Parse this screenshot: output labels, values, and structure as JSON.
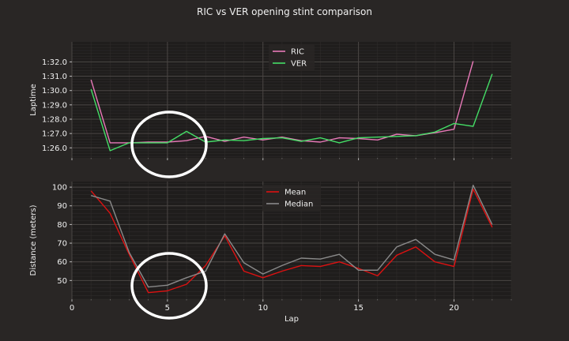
{
  "figure": {
    "title": "RIC vs VER opening stint comparison"
  },
  "chart_data": [
    {
      "type": "line",
      "ylabel": "Laptime",
      "xlabel": "",
      "xlim": [
        0,
        23
      ],
      "ylim": [
        85.3,
        93.4
      ],
      "yticks": [
        86,
        87,
        88,
        89,
        90,
        91,
        92
      ],
      "ytick_labels": [
        "1:26.0",
        "1:27.0",
        "1:28.0",
        "1:29.0",
        "1:30.0",
        "1:31.0",
        "1:32.0"
      ],
      "xticks": [
        0,
        5,
        10,
        15,
        20
      ],
      "grid": true,
      "legend": "top-center",
      "series": [
        {
          "name": "RIC",
          "color": "#e879b8",
          "x": [
            1,
            2,
            3,
            4,
            5,
            6,
            7,
            8,
            9,
            10,
            11,
            12,
            13,
            14,
            15,
            16,
            17,
            18,
            19,
            20,
            21
          ],
          "values": [
            90.75,
            86.35,
            86.35,
            86.4,
            86.4,
            86.5,
            86.8,
            86.45,
            86.75,
            86.55,
            86.75,
            86.5,
            86.4,
            86.7,
            86.65,
            86.55,
            86.95,
            86.85,
            87.05,
            87.3,
            92.05
          ]
        },
        {
          "name": "VER",
          "color": "#44dd66",
          "x": [
            1,
            2,
            3,
            4,
            5,
            6,
            7,
            8,
            9,
            10,
            11,
            12,
            13,
            14,
            15,
            16,
            17,
            18,
            19,
            20,
            21,
            22
          ],
          "values": [
            90.1,
            85.8,
            86.35,
            86.35,
            86.35,
            87.15,
            86.4,
            86.55,
            86.5,
            86.65,
            86.7,
            86.45,
            86.7,
            86.35,
            86.7,
            86.75,
            86.8,
            86.85,
            87.1,
            87.7,
            87.5,
            91.15
          ]
        }
      ]
    },
    {
      "type": "line",
      "ylabel": "Distance (meters)",
      "xlabel": "Lap",
      "xlim": [
        0,
        23
      ],
      "ylim": [
        40,
        103
      ],
      "yticks": [
        50,
        60,
        70,
        80,
        90,
        100
      ],
      "ytick_labels": [
        "50",
        "60",
        "70",
        "80",
        "90",
        "100"
      ],
      "xticks": [
        0,
        5,
        10,
        15,
        20
      ],
      "grid": true,
      "legend": "top-center",
      "series": [
        {
          "name": "Mean",
          "color": "#dd1111",
          "x": [
            1,
            2,
            3,
            4,
            5,
            6,
            7,
            8,
            9,
            10,
            11,
            12,
            13,
            14,
            15,
            16,
            17,
            18,
            19,
            20,
            21,
            22
          ],
          "values": [
            98,
            86,
            64,
            43.5,
            44.5,
            48,
            58,
            74,
            55,
            51.5,
            55,
            58,
            57.5,
            60,
            56.5,
            52.5,
            63.5,
            68,
            60,
            57.5,
            99,
            78.5
          ]
        },
        {
          "name": "Median",
          "color": "#8a8a8a",
          "x": [
            1,
            2,
            3,
            4,
            5,
            6,
            7,
            8,
            9,
            10,
            11,
            12,
            13,
            14,
            15,
            16,
            17,
            18,
            19,
            20,
            21,
            22
          ],
          "values": [
            95.5,
            92.5,
            65,
            46.5,
            47.5,
            51.5,
            55,
            75,
            59.5,
            53.5,
            58,
            62,
            61.5,
            64,
            55.5,
            55.5,
            68,
            72,
            64,
            61,
            101,
            80
          ]
        }
      ],
      "annotations": []
    }
  ]
}
